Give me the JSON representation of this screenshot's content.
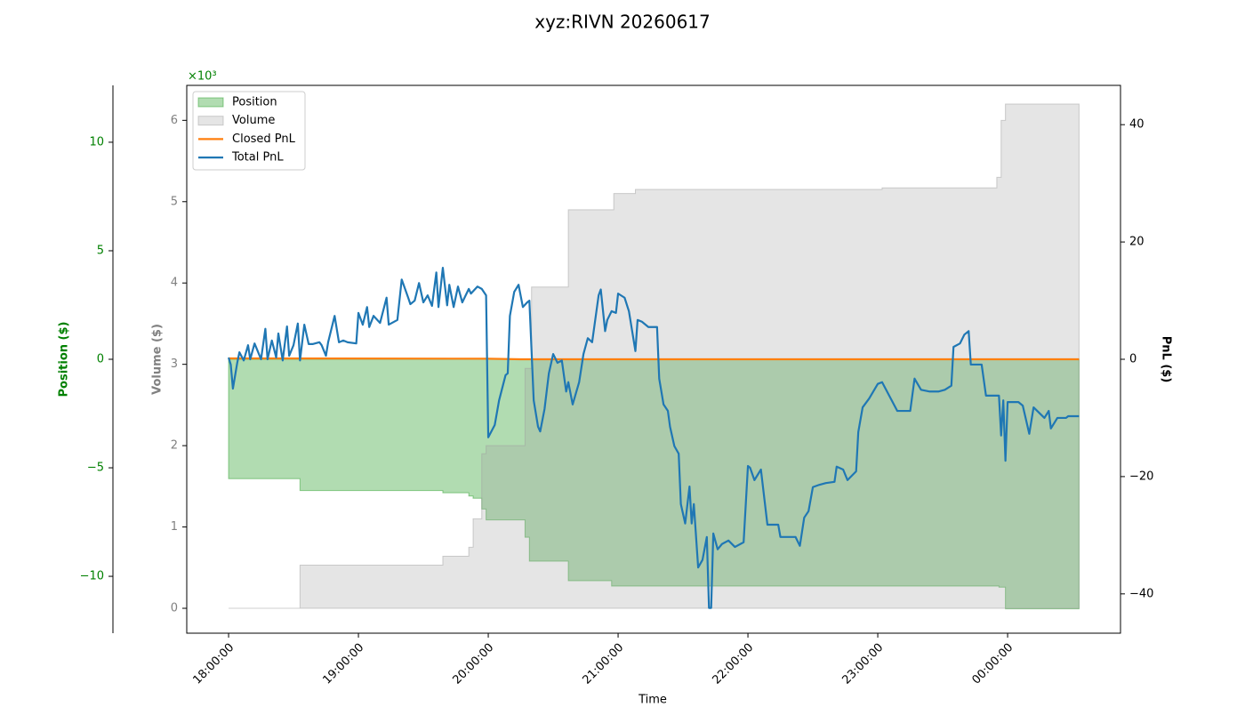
{
  "chart_data": {
    "type": "line",
    "title": "xyz:RIVN 20260617",
    "xlabel": "Time",
    "ylabel": "Volume ($)",
    "y2label": "PnL ($)",
    "y3label": "Position ($)",
    "y_offset_label": "×10³",
    "legend": "upper left",
    "xlim": [
      "17:40:40",
      "00:52:10"
    ],
    "xticks": [
      "18:00:00",
      "19:00:00",
      "20:00:00",
      "21:00:00",
      "22:00:00",
      "23:00:00",
      "00:00:00"
    ],
    "ylim": [
      -0.306,
      6.43
    ],
    "yticks": [
      0,
      1,
      2,
      3,
      4,
      5,
      6
    ],
    "y2lim": [
      -46.7,
      46.7
    ],
    "y2ticks": [
      {
        "value": -40,
        "label": "−40"
      },
      {
        "value": -20,
        "label": "−20"
      },
      0,
      20,
      40
    ],
    "y3lim": [
      -12.62,
      12.62
    ],
    "y3ticks": [
      {
        "value": -10,
        "label": "−10"
      },
      {
        "value": -5,
        "label": "−5"
      },
      0,
      5,
      10
    ],
    "series": [
      {
        "name": "Position",
        "type": "step-area",
        "axis": "y3",
        "color": "#2ca02c",
        "x": [
          "18:00:00",
          "18:33:00",
          "19:39:00",
          "19:51:00",
          "19:53:00",
          "19:57:00",
          "19:59:00",
          "20:17:00",
          "20:19:00",
          "20:37:00",
          "20:57:00",
          "23:56:00",
          "23:59:00",
          "00:33:00"
        ],
        "values": [
          -5.5,
          -6.05,
          -6.15,
          -6.3,
          -6.4,
          -6.9,
          -7.4,
          -8.2,
          -9.3,
          -10.2,
          -10.45,
          -10.5,
          -11.5,
          -11.5
        ]
      },
      {
        "name": "Volume",
        "type": "step-area",
        "axis": "y",
        "color": "#a0a0a0",
        "x": [
          "18:00:00",
          "18:33:00",
          "19:39:00",
          "19:51:00",
          "19:53:00",
          "19:57:00",
          "19:59:00",
          "20:17:00",
          "20:20:00",
          "20:37:00",
          "20:58:00",
          "21:08:00",
          "23:02:00",
          "23:55:00",
          "23:57:00",
          "23:59:00",
          "00:33:00"
        ],
        "values": [
          0,
          0.53,
          0.64,
          0.75,
          1.1,
          1.9,
          2.0,
          2.95,
          3.95,
          4.9,
          5.1,
          5.15,
          5.17,
          5.3,
          6.0,
          6.2,
          6.2
        ]
      },
      {
        "name": "Closed PnL",
        "type": "line",
        "axis": "y2",
        "color": "#ff7f0e",
        "x": [
          "18:00:00",
          "20:00:00",
          "20:15:00",
          "00:33:00"
        ],
        "values": [
          0.15,
          0.1,
          0,
          0
        ]
      },
      {
        "name": "Total PnL",
        "type": "line",
        "axis": "y2",
        "color": "#1f77b4",
        "x": [
          "18:00:00",
          "18:01:00",
          "18:02:00",
          "18:04:00",
          "18:05:00",
          "18:07:00",
          "18:09:00",
          "18:10:00",
          "18:12:00",
          "18:14:00",
          "18:15:00",
          "18:17:00",
          "18:18:00",
          "18:20:00",
          "18:22:00",
          "18:23:00",
          "18:25:00",
          "18:27:00",
          "18:28:00",
          "18:30:00",
          "18:32:00",
          "18:33:00",
          "18:35:00",
          "18:37:00",
          "18:39:00",
          "18:42:00",
          "18:43:00",
          "18:45:00",
          "18:46:00",
          "18:49:00",
          "18:51:00",
          "18:53:00",
          "18:55:00",
          "18:59:00",
          "19:00:00",
          "19:02:00",
          "19:04:00",
          "19:05:00",
          "19:07:00",
          "19:10:00",
          "19:13:00",
          "19:14:00",
          "19:18:00",
          "19:20:00",
          "19:23:00",
          "19:24:00",
          "19:26:00",
          "19:28:00",
          "19:30:00",
          "19:32:00",
          "19:34:00",
          "19:36:00",
          "19:37:00",
          "19:39:00",
          "19:41:00",
          "19:42:00",
          "19:44:00",
          "19:46:00",
          "19:48:00",
          "19:51:00",
          "19:52:00",
          "19:55:00",
          "19:57:00",
          "19:59:00",
          "20:00:00",
          "20:03:00",
          "20:05:00",
          "20:08:00",
          "20:09:00",
          "20:10:00",
          "20:12:00",
          "20:14:00",
          "20:16:00",
          "20:18:00",
          "20:19:00",
          "20:21:00",
          "20:23:00",
          "20:24:00",
          "20:26:00",
          "20:28:00",
          "20:30:00",
          "20:32:00",
          "20:34:00",
          "20:36:00",
          "20:37:00",
          "20:39:00",
          "20:42:00",
          "20:44:00",
          "20:46:00",
          "20:48:00",
          "20:51:00",
          "20:52:00",
          "20:54:00",
          "20:55:00",
          "20:57:00",
          "20:59:00",
          "21:00:00",
          "21:03:00",
          "21:05:00",
          "21:08:00",
          "21:09:00",
          "21:11:00",
          "21:14:00",
          "21:18:00",
          "21:19:00",
          "21:21:00",
          "21:23:00",
          "21:24:00",
          "21:26:00",
          "21:28:00",
          "21:29:00",
          "21:31:00",
          "21:33:00",
          "21:34:00",
          "21:35:00",
          "21:37:00",
          "21:39:00",
          "21:41:00",
          "21:42:00",
          "21:43:00",
          "21:44:00",
          "21:46:00",
          "21:48:00",
          "21:51:00",
          "21:54:00",
          "21:58:00",
          "22:00:00",
          "22:01:00",
          "22:03:00",
          "22:06:00",
          "22:09:00",
          "22:14:00",
          "22:15:00",
          "22:22:00",
          "22:24:00",
          "22:26:00",
          "22:28:00",
          "22:30:00",
          "22:33:00",
          "22:36:00",
          "22:40:00",
          "22:41:00",
          "22:44:00",
          "22:46:00",
          "22:50:00",
          "22:51:00",
          "22:53:00",
          "22:56:00",
          "23:00:00",
          "23:02:00",
          "23:09:00",
          "23:15:00",
          "23:17:00",
          "23:20:00",
          "23:24:00",
          "23:28:00",
          "23:31:00",
          "23:34:00",
          "23:35:00",
          "23:38:00",
          "23:40:00",
          "23:42:00",
          "23:43:00",
          "23:48:00",
          "23:50:00",
          "23:56:00",
          "23:57:00",
          "23:58:00",
          "23:59:00",
          "00:00:00",
          "00:05:00",
          "00:07:00",
          "00:10:00",
          "00:12:00",
          "00:17:00",
          "00:19:00",
          "00:20:00",
          "00:23:00",
          "00:27:00",
          "00:28:00",
          "00:33:00"
        ],
        "values": [
          0.3,
          -0.9,
          -5.0,
          -0.6,
          1.2,
          -0.2,
          2.4,
          0,
          2.7,
          0.9,
          0,
          5.2,
          0,
          3.2,
          0.3,
          4.4,
          -0.2,
          5.6,
          0.6,
          2.4,
          6.1,
          -0.2,
          5.9,
          2.6,
          2.6,
          2.9,
          2.4,
          0.6,
          2.9,
          7.4,
          2.9,
          3.2,
          2.9,
          2.7,
          7.9,
          5.9,
          8.9,
          5.5,
          7.4,
          6.2,
          10.5,
          5.9,
          6.7,
          13.6,
          10.5,
          9.4,
          10.0,
          13.0,
          9.7,
          10.9,
          9.1,
          14.8,
          8.9,
          15.6,
          9.2,
          12.7,
          8.9,
          12.4,
          9.7,
          12.0,
          11.2,
          12.4,
          12.0,
          10.9,
          -13.3,
          -11.2,
          -7.0,
          -2.7,
          -2.4,
          7.4,
          11.5,
          12.7,
          8.9,
          9.7,
          10.0,
          -7.0,
          -11.5,
          -12.3,
          -8.5,
          -2.4,
          0.9,
          -0.6,
          -0.2,
          -5.5,
          -3.9,
          -7.7,
          -3.9,
          0.9,
          3.6,
          2.9,
          10.9,
          11.9,
          4.8,
          6.7,
          8.2,
          7.9,
          11.2,
          10.5,
          8.2,
          1.4,
          6.7,
          6.4,
          5.5,
          5.5,
          -3.3,
          -7.7,
          -8.8,
          -11.5,
          -14.8,
          -16.1,
          -24.7,
          -28.0,
          -21.7,
          -28.0,
          -24.7,
          -35.5,
          -34.2,
          -30.3,
          -42.4,
          -42.4,
          -29.7,
          -32.4,
          -31.5,
          -30.9,
          -32.0,
          -31.2,
          -18.2,
          -18.5,
          -20.6,
          -18.8,
          -28.2,
          -28.2,
          -30.3,
          -30.3,
          -31.8,
          -27.0,
          -25.9,
          -21.8,
          -21.4,
          -21.1,
          -20.9,
          -18.3,
          -18.8,
          -20.6,
          -19.1,
          -12.4,
          -8.2,
          -6.7,
          -4.2,
          -3.9,
          -8.8,
          -8.8,
          -3.3,
          -5.2,
          -5.5,
          -5.5,
          -5.2,
          -4.5,
          2.1,
          2.7,
          4.2,
          4.8,
          -0.9,
          -0.9,
          -6.2,
          -6.2,
          -13.0,
          -7.0,
          -17.3,
          -7.3,
          -7.3,
          -7.9,
          -12.7,
          -8.2,
          -10.0,
          -8.8,
          -11.8,
          -10.0,
          -10.0,
          -9.7,
          -9.7
        ]
      }
    ]
  }
}
